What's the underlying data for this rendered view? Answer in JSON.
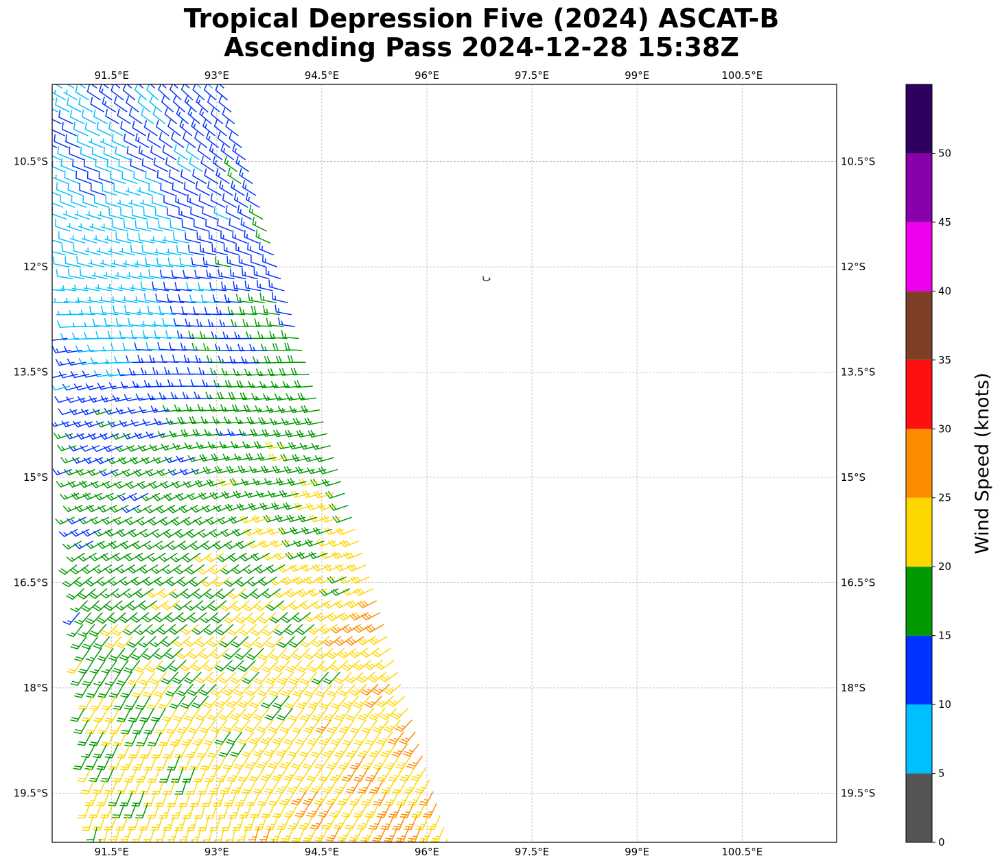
{
  "title_line1": "Tropical Depression Five (2024) ASCAT-B",
  "title_line2": "Ascending Pass 2024-12-28 15:38Z",
  "map": {
    "lon_range": [
      90.65,
      101.85
    ],
    "lat_range": [
      -20.2,
      -9.4
    ],
    "lon_ticks": [
      "91.5°E",
      "93°E",
      "94.5°E",
      "96°E",
      "97.5°E",
      "99°E",
      "100.5°E"
    ],
    "lon_tick_values": [
      91.5,
      93,
      94.5,
      96,
      97.5,
      99,
      100.5
    ],
    "lat_ticks": [
      "10.5°S",
      "12°S",
      "13.5°S",
      "15°S",
      "16.5°S",
      "18°S",
      "19.5°S"
    ],
    "lat_tick_values": [
      -10.5,
      -12,
      -13.5,
      -15,
      -16.5,
      -18,
      -19.5
    ],
    "gridlines": true,
    "coastline_feature": {
      "name": "small island",
      "lon": 96.85,
      "lat": -12.17
    },
    "swath": {
      "instrument": "ASCAT-B",
      "lat_start": -9.45,
      "lat_end": -20.2,
      "west_edge_lon_at_top": 90.65,
      "east_edge_lon_at_top": 93.1,
      "west_edge_lon_at_bottom": 91.2,
      "east_edge_lon_at_bottom": 96.3
    }
  },
  "colorbar": {
    "label": "Wind Speed (knots)",
    "tick_labels": [
      "0",
      "5",
      "10",
      "15",
      "20",
      "25",
      "30",
      "35",
      "40",
      "45",
      "50"
    ],
    "bounds": [
      0,
      5,
      10,
      15,
      20,
      25,
      30,
      35,
      40,
      45,
      50,
      55
    ],
    "colors": [
      "#555555",
      "#00bfff",
      "#0033ff",
      "#009900",
      "#ffd700",
      "#ff8c00",
      "#ff1010",
      "#7f3f26",
      "#ee00ee",
      "#8800aa",
      "#2e0060"
    ]
  },
  "wind_regions": {
    "calm_zone_center": {
      "lon": 91.7,
      "lat": -12.3
    },
    "strong_zone_center": {
      "lon": 95.3,
      "lat": -17.0
    },
    "max_speed_knots": 27
  }
}
